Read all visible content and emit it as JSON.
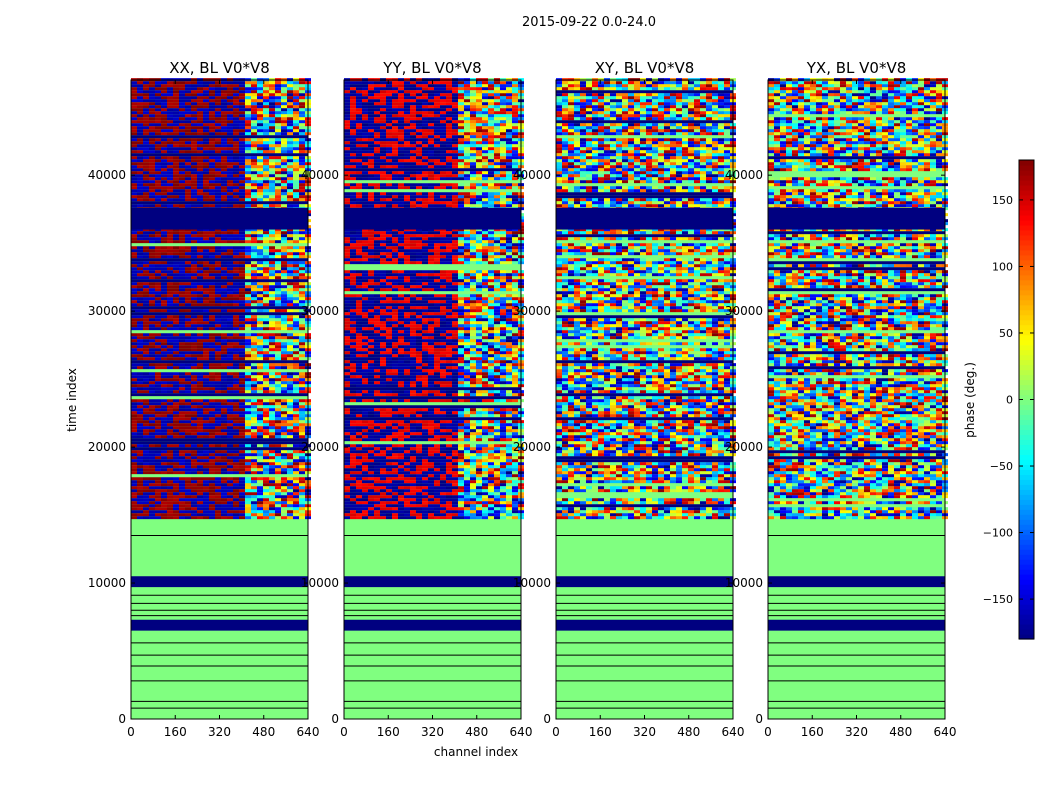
{
  "chart_data": {
    "type": "heatmap",
    "suptitle": "2015-09-22 0.0-24.0",
    "xlabel": "channel index",
    "ylabel": "time index",
    "xlim": [
      0,
      640
    ],
    "ylim": [
      0,
      47000
    ],
    "x_ticks": [
      "0",
      "160",
      "320",
      "480",
      "640"
    ],
    "x_tick_values": [
      0,
      160,
      320,
      480,
      640
    ],
    "y_ticks": [
      "0",
      "10000",
      "20000",
      "30000",
      "40000"
    ],
    "y_tick_values": [
      0,
      10000,
      20000,
      30000,
      40000
    ],
    "panels": [
      {
        "title": "XX, BL V0*V8",
        "pattern": "red-left"
      },
      {
        "title": "YY, BL V0*V8",
        "pattern": "blue-left"
      },
      {
        "title": "XY, BL V0*V8",
        "pattern": "mixed"
      },
      {
        "title": "YX, BL V0*V8",
        "pattern": "mixed"
      }
    ],
    "colorbar": {
      "label": "phase (deg.)",
      "range": [
        -180,
        180
      ],
      "ticks": [
        "150",
        "100",
        "50",
        "0",
        "−50",
        "−100",
        "−150"
      ],
      "tick_values": [
        150,
        100,
        50,
        0,
        -50,
        -100,
        -150
      ],
      "colormap": "jet"
    },
    "regions": {
      "uniform_zero_bands": [
        [
          600,
          14500
        ]
      ],
      "flagged_bands": [
        [
          6500,
          7300
        ],
        [
          9700,
          10500
        ],
        [
          36000,
          37600
        ]
      ],
      "edge_channel_split": 400
    }
  }
}
